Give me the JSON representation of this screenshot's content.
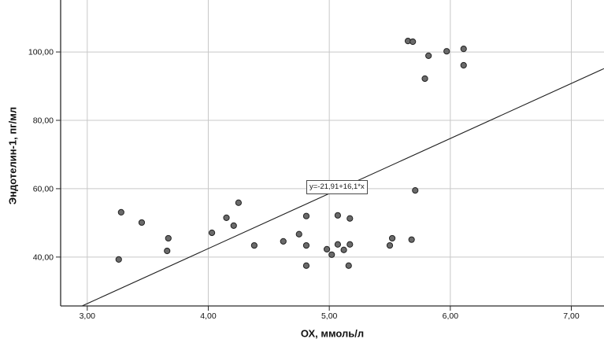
{
  "chart_data": {
    "type": "scatter",
    "title": "",
    "xlabel": "ОХ, ммоль/л",
    "ylabel": "Эндотелин-1, пг/мл",
    "x_ticks": [
      3,
      4,
      5,
      6,
      7
    ],
    "x_tick_labels": [
      "3,00",
      "4,00",
      "5,00",
      "6,00",
      "7,00"
    ],
    "y_ticks": [
      40,
      60,
      80,
      100
    ],
    "y_tick_labels": [
      "40,00",
      "60,00",
      "80,00",
      "100,00"
    ],
    "xlim": [
      2.78,
      7.27
    ],
    "ylim": [
      25.7,
      115.2
    ],
    "grid": true,
    "legend_position": "none",
    "regression": {
      "label": "y=-21,91+16,1*x",
      "intercept": -21.91,
      "slope": 16.1
    },
    "points": [
      [
        3.26,
        39.3
      ],
      [
        3.28,
        53.1
      ],
      [
        3.45,
        50.1
      ],
      [
        3.66,
        41.8
      ],
      [
        3.67,
        45.5
      ],
      [
        4.03,
        47.1
      ],
      [
        4.15,
        51.5
      ],
      [
        4.21,
        49.2
      ],
      [
        4.25,
        55.9
      ],
      [
        4.38,
        43.4
      ],
      [
        4.62,
        44.6
      ],
      [
        4.75,
        46.7
      ],
      [
        4.81,
        52.0
      ],
      [
        4.81,
        43.4
      ],
      [
        4.81,
        37.5
      ],
      [
        4.98,
        42.3
      ],
      [
        5.02,
        40.7
      ],
      [
        5.07,
        52.2
      ],
      [
        5.07,
        43.7
      ],
      [
        5.12,
        42.1
      ],
      [
        5.16,
        37.5
      ],
      [
        5.17,
        51.3
      ],
      [
        5.17,
        43.7
      ],
      [
        5.5,
        43.4
      ],
      [
        5.52,
        45.5
      ],
      [
        5.68,
        45.1
      ],
      [
        5.71,
        59.5
      ],
      [
        5.65,
        103.2
      ],
      [
        5.69,
        103.0
      ],
      [
        5.79,
        92.2
      ],
      [
        5.82,
        98.9
      ],
      [
        5.97,
        100.2
      ],
      [
        6.11,
        100.9
      ],
      [
        6.11,
        96.1
      ]
    ]
  },
  "colors": {
    "background": "#ffffff",
    "gridline": "#c8c8c8",
    "axis": "#2a2a2a",
    "tick_label": "#111111",
    "point_fill": "#6a6a6a",
    "point_stroke": "#222222",
    "regression_line": "#1f1f1f"
  }
}
